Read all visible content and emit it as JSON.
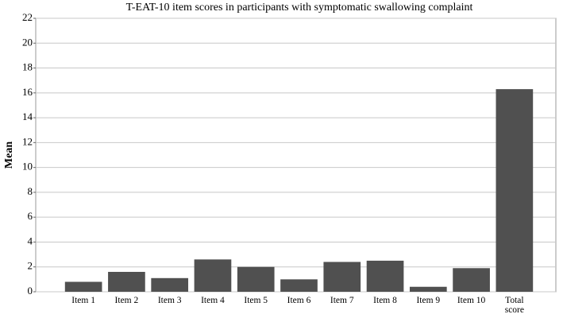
{
  "chart_data": {
    "type": "bar",
    "title": "T-EAT-10 item scores in participants with symptomatic swallowing complaint",
    "y_label": "Mean",
    "categories": [
      "Item 1",
      "Item 2",
      "Item 3",
      "Item 4",
      "Item 5",
      "Item 6",
      "Item 7",
      "Item 8",
      "Item 9",
      "Item 10",
      "Total score"
    ],
    "values": [
      0.8,
      1.6,
      1.1,
      2.6,
      2.0,
      1.0,
      2.4,
      2.5,
      0.4,
      1.9,
      16.3
    ],
    "color": "#505050",
    "ylim": [
      0,
      22
    ],
    "yticks": [
      0,
      2,
      4,
      6,
      8,
      10,
      12,
      14,
      16,
      18,
      20,
      22
    ],
    "grid": true
  }
}
